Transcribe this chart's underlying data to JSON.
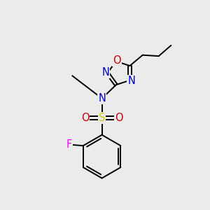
{
  "bg_color": "#ebebeb",
  "atom_colors": {
    "C": "#000000",
    "N": "#0000cd",
    "O": "#cc0000",
    "S": "#cccc00",
    "F": "#ff00ff"
  },
  "bond_color": "#000000",
  "bond_width": 1.4,
  "font_size_atom": 10.5
}
